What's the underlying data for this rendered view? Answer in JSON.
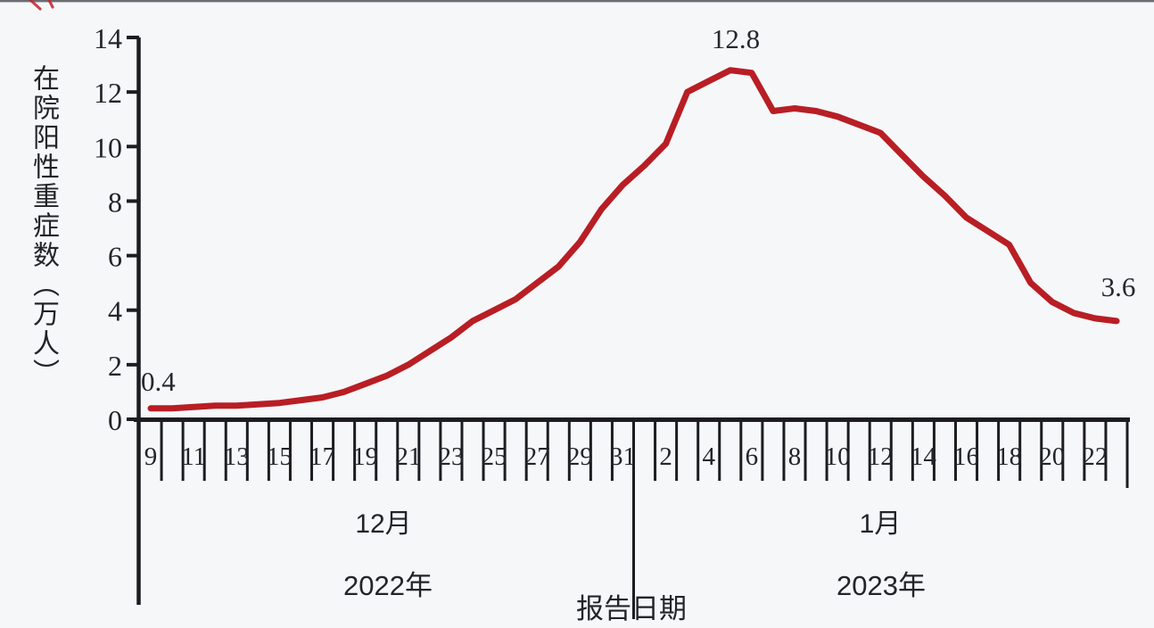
{
  "page": {
    "background": "#f6f7f9"
  },
  "chart_data": {
    "type": "line",
    "title": "",
    "grid": false,
    "legend": false,
    "line_color": "#b81e24",
    "y_axis": {
      "title": "在院阳性重症数（万人）",
      "min": 0,
      "max": 14,
      "step": 2,
      "ylim": [
        0,
        14
      ]
    },
    "x_axis": {
      "axis_caption": "报告日期",
      "month_labels": [
        {
          "month": "12月",
          "year": "2022年"
        },
        {
          "month": "1月",
          "year": "2023年"
        }
      ]
    },
    "points": [
      {
        "month": 12,
        "day": 9,
        "value": 0.4,
        "tick_label": "9"
      },
      {
        "month": 12,
        "day": 10,
        "value": 0.4
      },
      {
        "month": 12,
        "day": 11,
        "value": 0.45,
        "tick_label": "11"
      },
      {
        "month": 12,
        "day": 12,
        "value": 0.5
      },
      {
        "month": 12,
        "day": 13,
        "value": 0.5,
        "tick_label": "13"
      },
      {
        "month": 12,
        "day": 14,
        "value": 0.55
      },
      {
        "month": 12,
        "day": 15,
        "value": 0.6,
        "tick_label": "15"
      },
      {
        "month": 12,
        "day": 16,
        "value": 0.7
      },
      {
        "month": 12,
        "day": 17,
        "value": 0.8,
        "tick_label": "17"
      },
      {
        "month": 12,
        "day": 18,
        "value": 1.0
      },
      {
        "month": 12,
        "day": 19,
        "value": 1.3,
        "tick_label": "19"
      },
      {
        "month": 12,
        "day": 20,
        "value": 1.6
      },
      {
        "month": 12,
        "day": 21,
        "value": 2.0,
        "tick_label": "21"
      },
      {
        "month": 12,
        "day": 22,
        "value": 2.5
      },
      {
        "month": 12,
        "day": 23,
        "value": 3.0,
        "tick_label": "23"
      },
      {
        "month": 12,
        "day": 24,
        "value": 3.6
      },
      {
        "month": 12,
        "day": 25,
        "value": 4.0,
        "tick_label": "25"
      },
      {
        "month": 12,
        "day": 26,
        "value": 4.4
      },
      {
        "month": 12,
        "day": 27,
        "value": 5.0,
        "tick_label": "27"
      },
      {
        "month": 12,
        "day": 28,
        "value": 5.6
      },
      {
        "month": 12,
        "day": 29,
        "value": 6.5,
        "tick_label": "29"
      },
      {
        "month": 12,
        "day": 30,
        "value": 7.7
      },
      {
        "month": 12,
        "day": 31,
        "value": 8.6,
        "tick_label": "31"
      },
      {
        "month": 1,
        "day": 1,
        "value": 9.3
      },
      {
        "month": 1,
        "day": 2,
        "value": 10.1,
        "tick_label": "2"
      },
      {
        "month": 1,
        "day": 3,
        "value": 12.0
      },
      {
        "month": 1,
        "day": 4,
        "value": 12.4,
        "tick_label": "4"
      },
      {
        "month": 1,
        "day": 5,
        "value": 12.8
      },
      {
        "month": 1,
        "day": 6,
        "value": 12.7,
        "tick_label": "6"
      },
      {
        "month": 1,
        "day": 7,
        "value": 11.3
      },
      {
        "month": 1,
        "day": 8,
        "value": 11.4,
        "tick_label": "8"
      },
      {
        "month": 1,
        "day": 9,
        "value": 11.3
      },
      {
        "month": 1,
        "day": 10,
        "value": 11.1,
        "tick_label": "10"
      },
      {
        "month": 1,
        "day": 11,
        "value": 10.8
      },
      {
        "month": 1,
        "day": 12,
        "value": 10.5,
        "tick_label": "12"
      },
      {
        "month": 1,
        "day": 13,
        "value": 9.7
      },
      {
        "month": 1,
        "day": 14,
        "value": 8.9,
        "tick_label": "14"
      },
      {
        "month": 1,
        "day": 15,
        "value": 8.2
      },
      {
        "month": 1,
        "day": 16,
        "value": 7.4,
        "tick_label": "16"
      },
      {
        "month": 1,
        "day": 17,
        "value": 6.9
      },
      {
        "month": 1,
        "day": 18,
        "value": 6.4,
        "tick_label": "18"
      },
      {
        "month": 1,
        "day": 19,
        "value": 5.0
      },
      {
        "month": 1,
        "day": 20,
        "value": 4.3,
        "tick_label": "20"
      },
      {
        "month": 1,
        "day": 21,
        "value": 3.9
      },
      {
        "month": 1,
        "day": 22,
        "value": 3.7,
        "tick_label": "22"
      },
      {
        "month": 1,
        "day": 23,
        "value": 3.6
      }
    ],
    "annotations": [
      {
        "text": "0.4",
        "point_index": 0
      },
      {
        "text": "12.8",
        "point_index": 27
      },
      {
        "text": "3.6",
        "point_index": 45
      }
    ]
  }
}
